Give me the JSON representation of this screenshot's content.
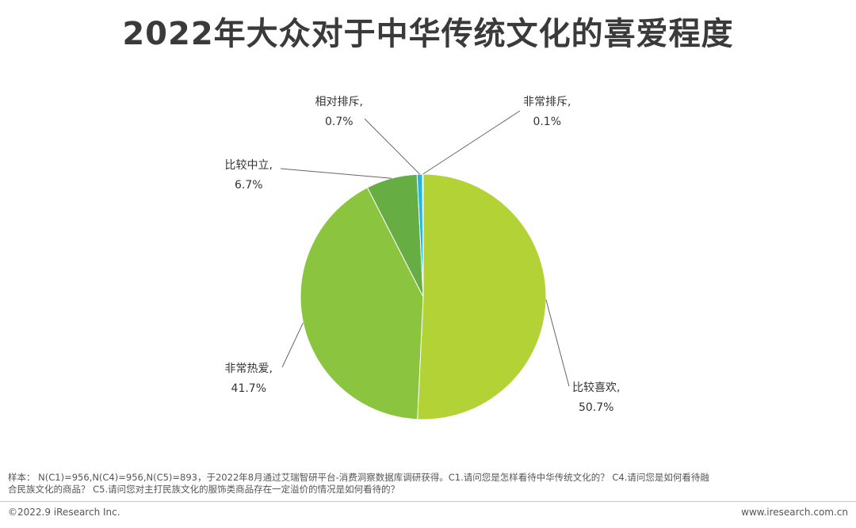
{
  "title": "2022年大众对于中华传统文化的喜爱程度",
  "chart_data": {
    "type": "pie",
    "slices": [
      {
        "label": "比较喜欢,",
        "percent": "50.7%",
        "value": 50.7,
        "color": "#b2d235"
      },
      {
        "label": "非常热爱,",
        "percent": "41.7%",
        "value": 41.7,
        "color": "#8bc43f"
      },
      {
        "label": "比较中立,",
        "percent": "6.7%",
        "value": 6.7,
        "color": "#66ad44"
      },
      {
        "label": "相对排斥,",
        "percent": "0.7%",
        "value": 0.7,
        "color": "#1fb7e8"
      },
      {
        "label": "非常排斥,",
        "percent": "0.1%",
        "value": 0.1,
        "color": "#1e5fa8"
      }
    ]
  },
  "footnote": {
    "line1": "样本： N(C1)=956,N(C4)=956,N(C5)=893，于2022年8月通过艾瑞智研平台-消费洞察数据库调研获得。C1.请问您是怎样看待中华传统文化的？ C4.请问您是如何看待融",
    "line2": "合民族文化的商品？ C5.请问您对主打民族文化的服饰类商品存在一定溢价的情况是如何看待的？"
  },
  "copyright": "©2022.9 iResearch Inc.",
  "website": "www.iresearch.com.cn"
}
